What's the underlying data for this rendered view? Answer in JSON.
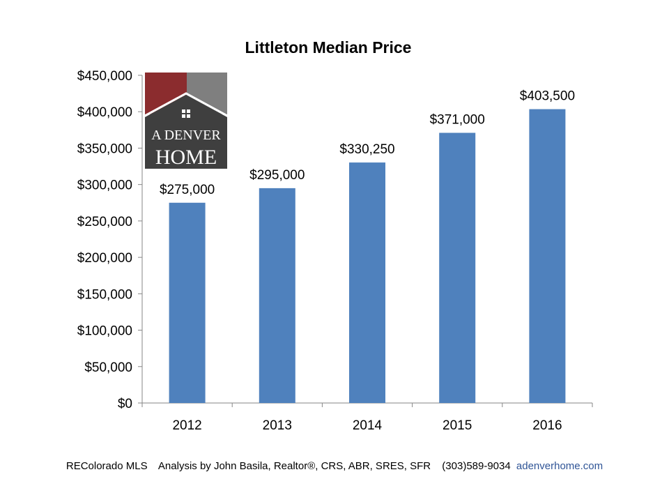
{
  "chart_data": {
    "type": "bar",
    "title": "Littleton Median Price",
    "categories": [
      "2012",
      "2013",
      "2014",
      "2015",
      "2016"
    ],
    "values": [
      275000,
      295000,
      330250,
      371000,
      403500
    ],
    "data_labels": [
      "$275,000",
      "$295,000",
      "$330,250",
      "$371,000",
      "$403,500"
    ],
    "ylim": [
      0,
      450000
    ],
    "y_ticks": [
      0,
      50000,
      100000,
      150000,
      200000,
      250000,
      300000,
      350000,
      400000,
      450000
    ],
    "y_tick_labels": [
      "$0",
      "$50,000",
      "$100,000",
      "$150,000",
      "$200,000",
      "$250,000",
      "$300,000",
      "$350,000",
      "$400,000",
      "$450,000"
    ],
    "grid": false,
    "bar_color": "#4f81bd"
  },
  "logo": {
    "line1": "A DENVER",
    "line2": "HOME",
    "colors": {
      "red": "#8b2c2e",
      "gray": "#7f7f7f",
      "dark": "#3f3f3f"
    }
  },
  "footer": {
    "source": "REColorado MLS",
    "analysis": "Analysis by John Basila, Realtor®, CRS, ABR, SRES, SFR",
    "phone": "(303)589-9034",
    "website": "adenverhome.com"
  }
}
